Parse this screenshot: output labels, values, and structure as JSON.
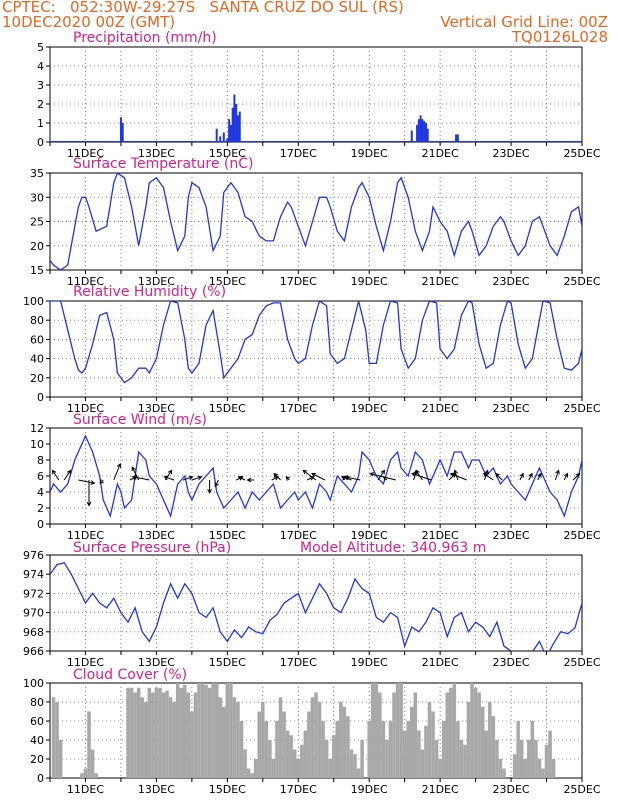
{
  "header": {
    "line1": "CPTEC:   052:30W-29:27S   SANTA CRUZ DO SUL (RS)",
    "line2": "10DEC2020 00Z (GMT)",
    "right1": "Vertical Grid Line: 00Z",
    "right2": "TQ0126L028"
  },
  "date_labels": [
    "11DEC",
    "13DEC",
    "15DEC",
    "17DEC",
    "19DEC",
    "21DEC",
    "23DEC",
    "25DEC"
  ],
  "colors": {
    "line": "#2036e0",
    "cloud": "#a8a8a8",
    "title": "#d6208a",
    "header": "#e8661e"
  },
  "panels": {
    "precip": {
      "title": "Precipitation (mm/h)"
    },
    "temp": {
      "title": "Surface Temperature (nC)"
    },
    "rh": {
      "title": "Relative Humidity (%)"
    },
    "wind": {
      "title": "Surface Wind (m/s)"
    },
    "press": {
      "title": "Surface Pressure (hPa)",
      "extra": "Model Altitude: 340.963 m"
    },
    "cloud": {
      "title": "Cloud Cover (%)"
    }
  },
  "chart_data": [
    {
      "type": "bar",
      "id": "precip",
      "title": "Precipitation (mm/h)",
      "x_unit": "day",
      "x": [
        12.0,
        12.05,
        14.7,
        14.8,
        14.9,
        15.0,
        15.05,
        15.1,
        15.15,
        15.2,
        15.25,
        15.3,
        15.35,
        20.2,
        20.35,
        20.4,
        20.45,
        20.5,
        20.55,
        20.6,
        20.65,
        21.45,
        21.5
      ],
      "values": [
        1.3,
        1.0,
        0.7,
        0.3,
        0.5,
        0.2,
        1.2,
        0.9,
        1.8,
        2.5,
        2.0,
        1.4,
        1.6,
        0.6,
        0.9,
        1.2,
        1.4,
        1.2,
        1.1,
        1.0,
        0.7,
        0.4,
        0.4
      ],
      "ylim": [
        0,
        5
      ],
      "yticks": [
        0,
        1,
        2,
        3,
        4,
        5
      ]
    },
    {
      "type": "line",
      "id": "temp",
      "title": "Surface Temperature (nC)",
      "x": [
        10.0,
        10.1,
        10.3,
        10.5,
        10.7,
        10.8,
        10.9,
        11.0,
        11.1,
        11.3,
        11.6,
        11.8,
        11.9,
        12.1,
        12.3,
        12.5,
        12.7,
        12.8,
        13.0,
        13.2,
        13.4,
        13.6,
        13.8,
        13.9,
        14.0,
        14.2,
        14.4,
        14.6,
        14.8,
        14.9,
        15.1,
        15.3,
        15.5,
        15.7,
        15.9,
        16.1,
        16.3,
        16.5,
        16.7,
        16.8,
        17.0,
        17.2,
        17.4,
        17.6,
        17.8,
        17.9,
        18.1,
        18.3,
        18.5,
        18.7,
        18.8,
        19.0,
        19.2,
        19.4,
        19.6,
        19.8,
        19.9,
        20.1,
        20.3,
        20.5,
        20.7,
        20.8,
        21.0,
        21.2,
        21.4,
        21.6,
        21.8,
        21.9,
        22.1,
        22.3,
        22.5,
        22.7,
        22.8,
        23.0,
        23.2,
        23.4,
        23.6,
        23.8,
        23.9,
        24.1,
        24.3,
        24.5,
        24.7,
        24.9,
        25.0
      ],
      "values": [
        17,
        16,
        15,
        16,
        24,
        28,
        30,
        30,
        28,
        23,
        24,
        33,
        35,
        34,
        28,
        20,
        28,
        33,
        34,
        32,
        25,
        19,
        22,
        30,
        33,
        32,
        28,
        19,
        22,
        31,
        33,
        31,
        26,
        25,
        22,
        21,
        21,
        26,
        29,
        28,
        24,
        20,
        25,
        30,
        30,
        28,
        23,
        21,
        28,
        32,
        33,
        30,
        24,
        19,
        25,
        33,
        34,
        30,
        23,
        19,
        23,
        28,
        25,
        23,
        18,
        23,
        25,
        23,
        18,
        20,
        24,
        26,
        25,
        21,
        18,
        20,
        25,
        26,
        24,
        20,
        18,
        22,
        27,
        28,
        24
      ],
      "ylim": [
        15,
        35
      ],
      "yticks": [
        15,
        20,
        25,
        30,
        35
      ]
    },
    {
      "type": "line",
      "id": "rh",
      "title": "Relative Humidity (%)",
      "x": [
        10.0,
        10.1,
        10.3,
        10.5,
        10.7,
        10.8,
        10.9,
        11.0,
        11.2,
        11.4,
        11.6,
        11.8,
        11.9,
        12.1,
        12.3,
        12.5,
        12.7,
        12.8,
        13.0,
        13.2,
        13.4,
        13.6,
        13.8,
        13.9,
        14.0,
        14.2,
        14.4,
        14.6,
        14.8,
        14.9,
        15.1,
        15.3,
        15.5,
        15.7,
        15.9,
        16.1,
        16.3,
        16.5,
        16.7,
        16.9,
        17.0,
        17.2,
        17.4,
        17.6,
        17.8,
        17.9,
        18.1,
        18.3,
        18.5,
        18.7,
        18.9,
        19.0,
        19.2,
        19.4,
        19.6,
        19.8,
        19.9,
        20.1,
        20.3,
        20.5,
        20.7,
        20.9,
        21.0,
        21.2,
        21.4,
        21.6,
        21.8,
        21.9,
        22.1,
        22.3,
        22.5,
        22.7,
        22.9,
        23.0,
        23.2,
        23.4,
        23.6,
        23.8,
        23.9,
        24.1,
        24.3,
        24.5,
        24.7,
        24.9,
        25.0
      ],
      "values": [
        100,
        100,
        100,
        70,
        40,
        28,
        25,
        30,
        55,
        85,
        88,
        60,
        25,
        15,
        20,
        30,
        30,
        25,
        40,
        75,
        100,
        98,
        60,
        30,
        25,
        35,
        75,
        90,
        45,
        20,
        30,
        40,
        60,
        65,
        85,
        95,
        98,
        98,
        60,
        40,
        35,
        40,
        75,
        100,
        95,
        45,
        35,
        40,
        70,
        100,
        70,
        35,
        35,
        75,
        100,
        98,
        50,
        30,
        40,
        80,
        100,
        98,
        50,
        40,
        50,
        85,
        100,
        98,
        55,
        30,
        35,
        75,
        100,
        98,
        55,
        30,
        40,
        80,
        100,
        98,
        60,
        30,
        28,
        35,
        50
      ],
      "ylim": [
        0,
        100
      ],
      "yticks": [
        0,
        20,
        40,
        60,
        80,
        100
      ]
    },
    {
      "type": "line",
      "id": "wind",
      "title": "Surface Wind (m/s)",
      "x": [
        10.0,
        10.1,
        10.3,
        10.5,
        10.7,
        10.9,
        11.0,
        11.2,
        11.4,
        11.5,
        11.7,
        11.9,
        12.0,
        12.1,
        12.3,
        12.5,
        12.7,
        12.8,
        13.0,
        13.2,
        13.4,
        13.6,
        13.8,
        13.9,
        14.0,
        14.2,
        14.4,
        14.6,
        14.7,
        14.9,
        15.1,
        15.3,
        15.5,
        15.7,
        15.9,
        16.1,
        16.3,
        16.5,
        16.7,
        16.9,
        17.0,
        17.2,
        17.4,
        17.6,
        17.8,
        17.9,
        18.1,
        18.3,
        18.5,
        18.7,
        18.8,
        19.0,
        19.2,
        19.4,
        19.6,
        19.8,
        19.9,
        20.1,
        20.3,
        20.5,
        20.7,
        20.9,
        21.0,
        21.2,
        21.4,
        21.6,
        21.8,
        21.9,
        22.1,
        22.3,
        22.5,
        22.7,
        22.9,
        23.0,
        23.2,
        23.4,
        23.6,
        23.8,
        23.9,
        24.1,
        24.3,
        24.5,
        24.7,
        24.9,
        25.0
      ],
      "values": [
        4,
        5,
        4,
        5,
        8,
        10,
        11,
        9,
        6,
        3,
        1,
        5,
        4,
        2,
        3,
        9,
        8,
        6,
        5,
        3,
        1,
        5,
        6,
        4,
        3,
        5,
        6,
        7,
        4,
        2,
        3,
        4,
        2,
        4,
        3,
        4,
        5,
        2,
        3,
        4,
        3,
        4,
        2,
        5,
        4,
        3,
        6,
        5,
        4,
        6,
        9,
        8,
        6,
        5,
        8,
        9,
        7,
        6,
        9,
        8,
        5,
        7,
        8,
        6,
        9,
        9,
        7,
        8,
        8,
        6,
        7,
        5,
        6,
        5,
        4,
        3,
        5,
        7,
        6,
        4,
        3,
        1,
        4,
        6,
        8
      ],
      "ylim": [
        0,
        12
      ],
      "yticks": [
        0,
        2,
        4,
        6,
        8,
        10,
        12
      ],
      "arrows": {
        "x": [
          10.25,
          10.4,
          10.8,
          11.1,
          11.5,
          11.8,
          12.25,
          12.5,
          12.8,
          13.25,
          13.5,
          13.75,
          14.0,
          14.5,
          14.75,
          15.25,
          15.5,
          15.75,
          16.25,
          16.5,
          16.75,
          17.25,
          17.5,
          17.75,
          18.25,
          18.5,
          18.75,
          19.25,
          19.5,
          19.75,
          20.25,
          20.5,
          20.75,
          21.25,
          21.5,
          21.75,
          22.25,
          22.5,
          22.75,
          23.25,
          23.5,
          23.75,
          24.25,
          24.5,
          24.75
        ],
        "dx": [
          -2,
          2,
          5,
          0,
          -1,
          2,
          2,
          -2,
          -5,
          2,
          -3,
          3,
          3,
          0,
          -1,
          2,
          -2,
          -2,
          2,
          -2,
          -1,
          2,
          -4,
          -4,
          2,
          -3,
          -5,
          2,
          -1,
          -8,
          1,
          -2,
          -6,
          2,
          -1,
          -5,
          1,
          -3,
          -2,
          1,
          1,
          1,
          1,
          1,
          2
        ],
        "dy": [
          3,
          3,
          -1,
          -8,
          -1,
          5,
          1,
          4,
          1,
          3,
          1,
          1,
          1,
          -4,
          -2,
          1,
          1,
          0,
          1,
          2,
          1,
          1,
          3,
          2,
          1,
          1,
          1,
          3,
          1,
          2,
          3,
          3,
          2,
          2,
          3,
          2,
          3,
          2,
          2,
          2,
          2,
          2,
          3,
          2,
          2
        ]
      }
    },
    {
      "type": "line",
      "id": "press",
      "title": "Surface Pressure (hPa)",
      "x": [
        10.0,
        10.2,
        10.4,
        10.6,
        10.8,
        11.0,
        11.2,
        11.4,
        11.6,
        11.8,
        12.0,
        12.2,
        12.4,
        12.6,
        12.8,
        13.0,
        13.2,
        13.4,
        13.6,
        13.8,
        14.0,
        14.2,
        14.4,
        14.6,
        14.8,
        15.0,
        15.2,
        15.4,
        15.6,
        15.8,
        16.0,
        16.2,
        16.4,
        16.6,
        16.8,
        17.0,
        17.2,
        17.4,
        17.6,
        17.8,
        18.0,
        18.2,
        18.4,
        18.6,
        18.8,
        19.0,
        19.2,
        19.4,
        19.6,
        19.8,
        20.0,
        20.2,
        20.4,
        20.6,
        20.8,
        21.0,
        21.2,
        21.4,
        21.6,
        21.8,
        22.0,
        22.2,
        22.4,
        22.6,
        22.8,
        23.0,
        23.2,
        23.4,
        23.6,
        23.8,
        24.0,
        24.2,
        24.4,
        24.6,
        24.8,
        25.0
      ],
      "values": [
        974,
        975,
        975.2,
        974,
        972.5,
        971,
        972,
        971,
        970.5,
        971.5,
        970,
        969,
        970.5,
        968,
        967,
        968.5,
        971,
        973,
        971.5,
        973,
        972,
        970,
        969.5,
        970.5,
        968,
        967,
        968.2,
        967.4,
        968.5,
        968,
        967.8,
        969.2,
        969.8,
        971,
        971.5,
        972,
        970,
        971.5,
        973,
        972,
        970.5,
        970,
        971.5,
        973.5,
        972.5,
        972,
        969.5,
        969,
        970,
        969.5,
        966.5,
        968.5,
        968,
        969,
        970.5,
        970,
        967.5,
        969.5,
        970,
        968,
        969,
        968.5,
        967.5,
        969,
        966.5,
        966,
        965.8,
        965.5,
        965.9,
        967,
        965.4,
        966.8,
        968,
        967.8,
        968.4,
        971
      ],
      "ylim": [
        966,
        976
      ],
      "yticks": [
        966,
        968,
        970,
        972,
        974,
        976
      ]
    },
    {
      "type": "area",
      "id": "cloud",
      "title": "Cloud Cover (%)",
      "x": [
        10.0,
        10.1,
        10.2,
        10.3,
        10.4,
        10.5,
        10.6,
        10.7,
        10.8,
        10.9,
        11.0,
        11.1,
        11.2,
        11.3,
        11.4,
        11.5,
        11.6,
        11.7,
        11.8,
        11.9,
        12.0,
        12.1,
        12.2,
        12.3,
        12.4,
        12.5,
        12.6,
        12.7,
        12.8,
        12.9,
        13.0,
        13.1,
        13.2,
        13.3,
        13.4,
        13.5,
        13.6,
        13.7,
        13.8,
        13.9,
        14.0,
        14.1,
        14.2,
        14.3,
        14.4,
        14.5,
        14.6,
        14.7,
        14.8,
        14.9,
        15.0,
        15.1,
        15.2,
        15.3,
        15.4,
        15.5,
        15.6,
        15.7,
        15.8,
        15.9,
        16.0,
        16.1,
        16.2,
        16.3,
        16.4,
        16.5,
        16.6,
        16.7,
        16.8,
        16.9,
        17.0,
        17.1,
        17.2,
        17.3,
        17.4,
        17.5,
        17.6,
        17.7,
        17.8,
        17.9,
        18.0,
        18.1,
        18.2,
        18.3,
        18.4,
        18.5,
        18.6,
        18.7,
        18.8,
        18.9,
        19.0,
        19.1,
        19.2,
        19.3,
        19.4,
        19.5,
        19.6,
        19.7,
        19.8,
        19.9,
        20.0,
        20.1,
        20.2,
        20.3,
        20.4,
        20.5,
        20.6,
        20.7,
        20.8,
        20.9,
        21.0,
        21.1,
        21.2,
        21.3,
        21.4,
        21.5,
        21.6,
        21.7,
        21.8,
        21.9,
        22.0,
        22.1,
        22.2,
        22.3,
        22.4,
        22.5,
        22.6,
        22.7,
        22.8,
        22.9,
        23.0,
        23.1,
        23.2,
        23.3,
        23.4,
        23.5,
        23.6,
        23.7,
        23.8,
        23.9,
        24.0,
        24.1,
        24.2,
        24.3,
        24.4,
        24.5,
        24.6,
        24.7,
        24.8,
        24.9,
        25.0
      ],
      "values": [
        0,
        85,
        80,
        40,
        0,
        0,
        0,
        0,
        0,
        5,
        10,
        70,
        30,
        5,
        0,
        0,
        0,
        0,
        0,
        0,
        0,
        0,
        95,
        95,
        90,
        95,
        85,
        80,
        95,
        90,
        95,
        95,
        90,
        92,
        85,
        80,
        100,
        95,
        98,
        90,
        70,
        90,
        100,
        100,
        98,
        95,
        100,
        100,
        85,
        75,
        100,
        100,
        85,
        80,
        60,
        30,
        10,
        5,
        20,
        70,
        80,
        60,
        40,
        20,
        60,
        85,
        70,
        50,
        45,
        30,
        20,
        35,
        50,
        70,
        85,
        90,
        80,
        60,
        40,
        20,
        45,
        60,
        80,
        75,
        65,
        30,
        25,
        10,
        40,
        0,
        60,
        100,
        100,
        90,
        60,
        40,
        60,
        90,
        100,
        100,
        50,
        60,
        75,
        90,
        50,
        30,
        55,
        80,
        70,
        40,
        20,
        60,
        90,
        95,
        100,
        60,
        40,
        35,
        80,
        100,
        95,
        90,
        75,
        50,
        80,
        65,
        40,
        20,
        10,
        0,
        0,
        25,
        60,
        40,
        20,
        40,
        60,
        40,
        20,
        10,
        35,
        50,
        20,
        0,
        0,
        0,
        0,
        0,
        0,
        0,
        0
      ],
      "ylim": [
        0,
        100
      ],
      "yticks": [
        0,
        20,
        40,
        60,
        80,
        100
      ]
    }
  ]
}
